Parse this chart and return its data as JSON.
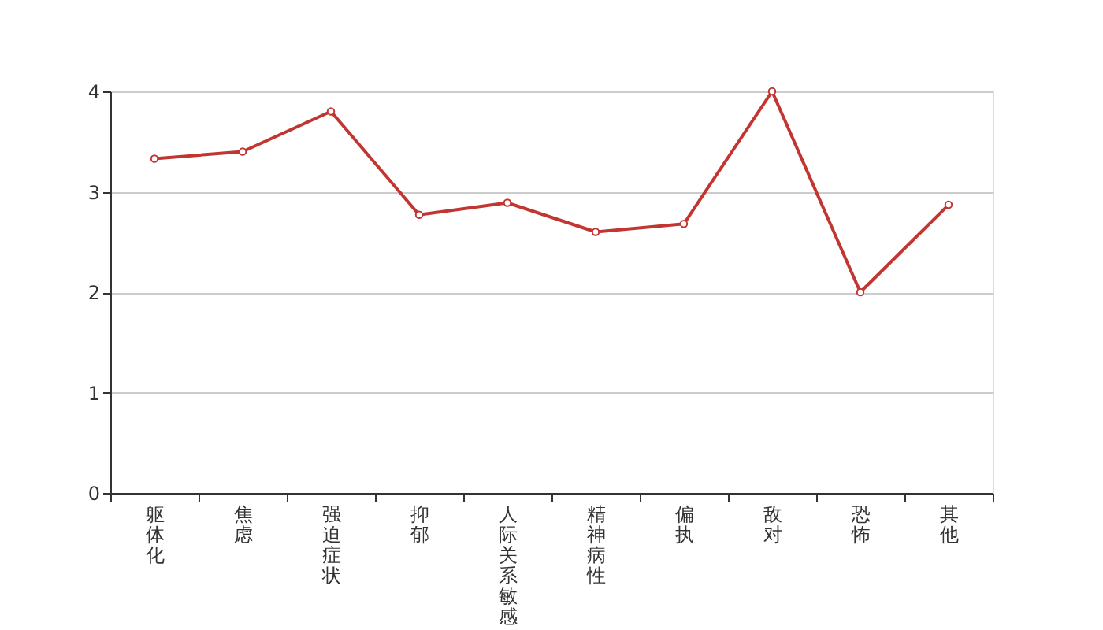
{
  "chart_data": {
    "type": "line",
    "categories": [
      "躯体化",
      "焦虑",
      "强迫症状",
      "抑郁",
      "人际关系敏感",
      "精神病性",
      "偏执",
      "敌对",
      "恐怖",
      "其他"
    ],
    "series": [
      {
        "color": "#c23531",
        "values": [
          3.33,
          3.4,
          3.8,
          2.77,
          2.89,
          2.6,
          2.68,
          4,
          2,
          2.87
        ]
      }
    ],
    "ylim": [
      0,
      4
    ],
    "yticks": [
      0,
      1,
      2,
      3,
      4
    ],
    "grid": "y",
    "marker": "circle",
    "line_style": "solid"
  }
}
